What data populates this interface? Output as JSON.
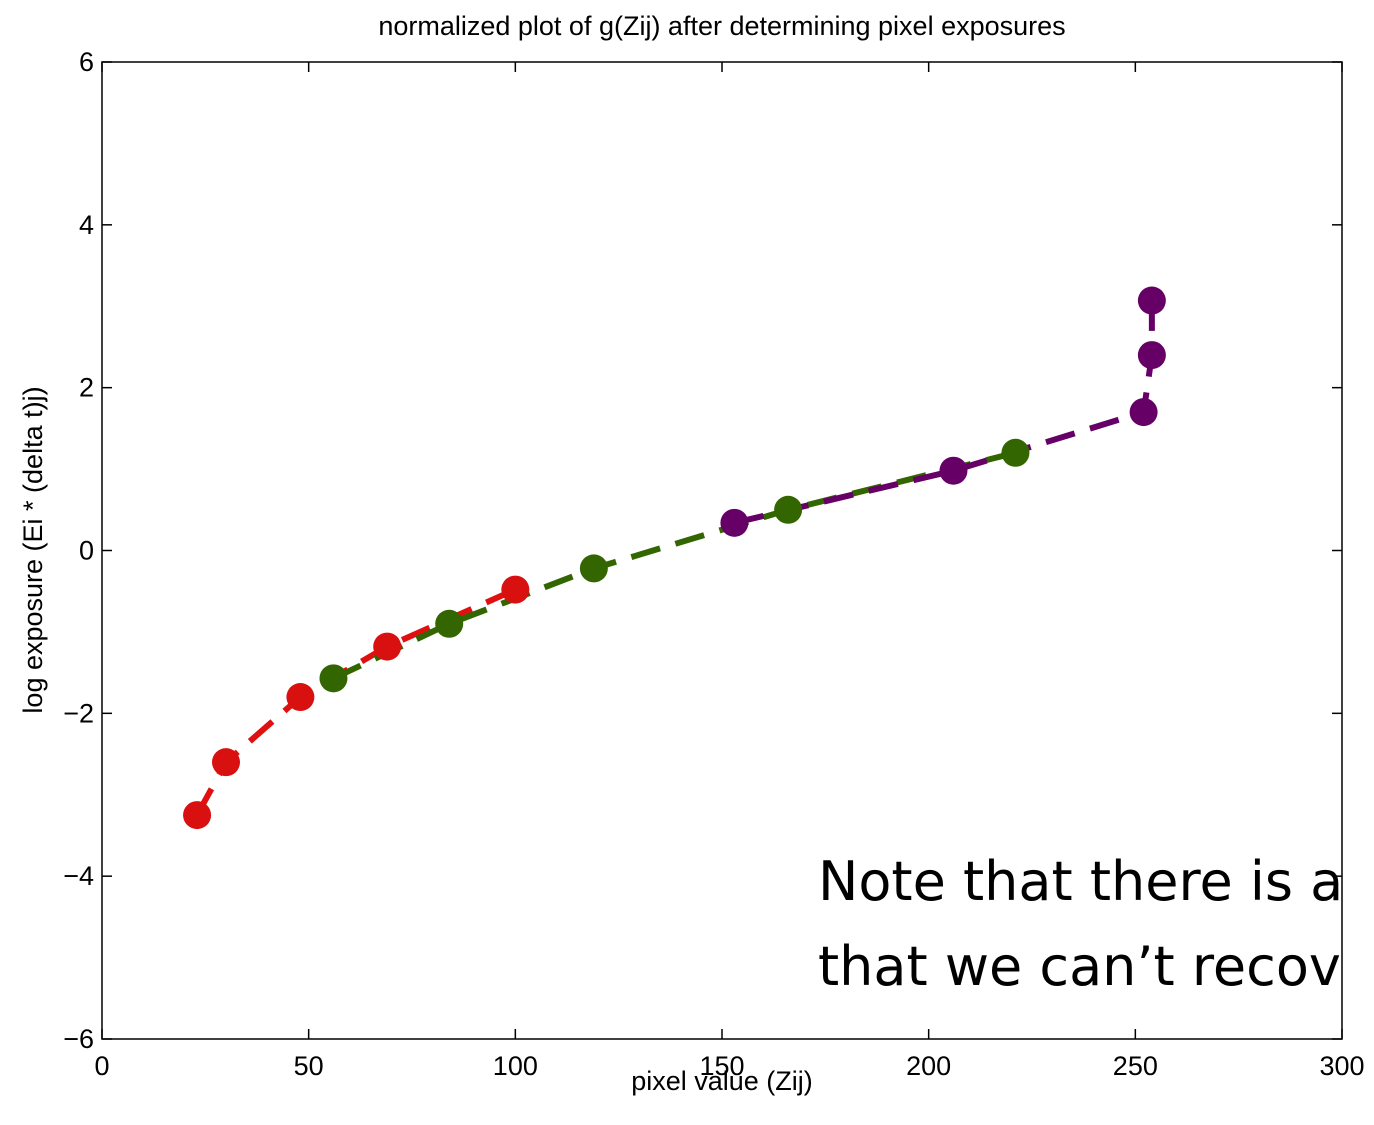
{
  "chart_data": {
    "type": "line",
    "title": "normalized plot of g(Zij) after determining pixel exposures",
    "xlabel": "pixel value (Zij)",
    "ylabel": "log exposure (Ei * (delta t)j)",
    "xlim": [
      0,
      300
    ],
    "ylim": [
      -6,
      6
    ],
    "xticks": [
      0,
      50,
      100,
      150,
      200,
      250,
      300
    ],
    "yticks": [
      -6,
      -4,
      -2,
      0,
      2,
      4,
      6
    ],
    "grid": false,
    "series": [
      {
        "color": "#e01010",
        "marker_color": "#d81010",
        "x": [
          23,
          30,
          48,
          69,
          100
        ],
        "y": [
          -3.25,
          -2.6,
          -1.8,
          -1.18,
          -0.48
        ]
      },
      {
        "color": "#336600",
        "marker_color": "#336600",
        "x": [
          56,
          84,
          119,
          166,
          221
        ],
        "y": [
          -1.57,
          -0.9,
          -0.22,
          0.5,
          1.2
        ]
      },
      {
        "color": "#660066",
        "marker_color": "#660066",
        "x": [
          153,
          206,
          252,
          254,
          254
        ],
        "y": [
          0.34,
          0.98,
          1.7,
          2.4,
          3.07
        ]
      }
    ],
    "annotation": [
      "Note that there is a",
      "that we can’t recov"
    ]
  }
}
